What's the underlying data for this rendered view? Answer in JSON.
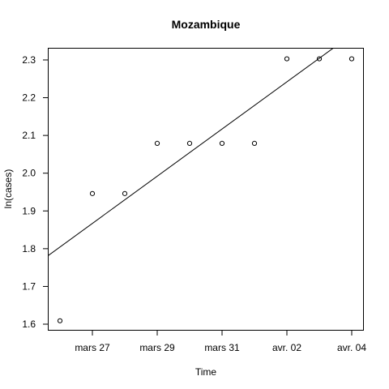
{
  "chart_data": {
    "type": "scatter",
    "title": "Mozambique",
    "xlabel": "Time",
    "ylabel": "ln(cases)",
    "x": [
      "2020-03-26",
      "2020-03-27",
      "2020-03-28",
      "2020-03-29",
      "2020-03-30",
      "2020-03-31",
      "2020-04-01",
      "2020-04-02",
      "2020-04-03",
      "2020-04-04"
    ],
    "y": [
      1.609,
      1.946,
      1.946,
      2.079,
      2.079,
      2.079,
      2.079,
      2.303,
      2.303,
      2.303
    ],
    "xlim": [
      "2020-03-25.65",
      "2020-04-04.35"
    ],
    "ylim": [
      1.585,
      2.33
    ],
    "x_ticks": [
      {
        "date": "2020-03-27",
        "label": "mars 27"
      },
      {
        "date": "2020-03-29",
        "label": "mars 29"
      },
      {
        "date": "2020-03-31",
        "label": "mars 31"
      },
      {
        "date": "2020-04-02",
        "label": "avr. 02"
      },
      {
        "date": "2020-04-04",
        "label": "avr. 04"
      }
    ],
    "y_ticks": [
      1.6,
      1.7,
      1.8,
      1.9,
      2.0,
      2.1,
      2.2,
      2.3
    ],
    "y_tick_labels": [
      "1.6",
      "1.7",
      "1.8",
      "1.9",
      "2.0",
      "2.1",
      "2.2",
      "2.3"
    ],
    "fit_line": {
      "from": {
        "date": "2020-03-25",
        "y": 1.742
      },
      "to": {
        "date": "2020-04-04",
        "y": 2.367
      }
    },
    "grid": false,
    "legend": "none"
  }
}
